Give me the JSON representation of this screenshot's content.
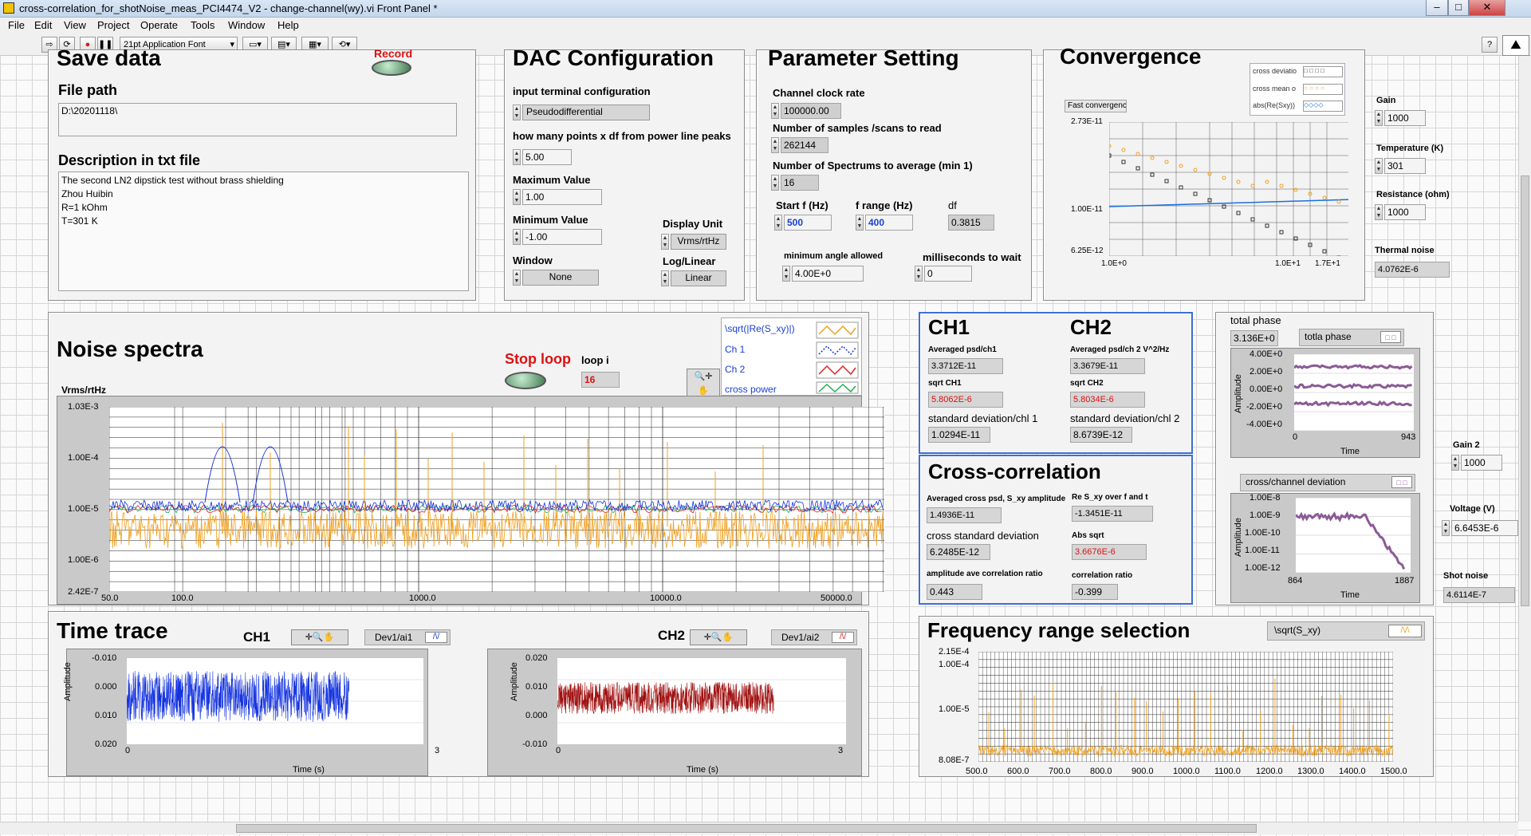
{
  "window": {
    "title": "cross-correlation_for_shotNoise_meas_PCI4474_V2 - change-channel(wy).vi Front Panel *"
  },
  "menu": [
    "File",
    "Edit",
    "View",
    "Project",
    "Operate",
    "Tools",
    "Window",
    "Help"
  ],
  "toolbar": {
    "font": "21pt Application Font"
  },
  "save_data": {
    "title": "Save data",
    "file_path_label": "File path",
    "file_path": "D:\\20201118\\",
    "desc_label": "Description in txt file",
    "desc_lines": [
      "The second LN2 dipstick test without brass shielding",
      "Zhou Huibin",
      "R=1 kOhm",
      "T=301 K"
    ],
    "record_label": "Record"
  },
  "dac": {
    "title": "DAC Configuration",
    "input_term_label": "input terminal configuration",
    "input_term": "Pseudodifferential",
    "points_label": "how many points x df from power line peaks",
    "points": "5.00",
    "max_label": "Maximum Value",
    "max": "1.00",
    "min_label": "Minimum Value",
    "min": "-1.00",
    "window_label": "Window",
    "window": "None",
    "unit_label": "Display Unit",
    "unit": "Vrms/rtHz",
    "loglin_label": "Log/Linear",
    "loglin": "Linear"
  },
  "param": {
    "title": "Parameter Setting",
    "clock_label": "Channel clock rate",
    "clock": "100000.00",
    "samples_label": "Number of samples /scans to read",
    "samples": "262144",
    "spectrums_label": "Number of Spectrums to average (min 1)",
    "spectrums": "16",
    "startf_label": "Start f (Hz)",
    "startf": "500",
    "frange_label": "f range (Hz)",
    "frange": "400",
    "df_label": "df",
    "df": "0.3815",
    "minangle_label": "minimum angle allowed",
    "minangle": "4.00E+0",
    "ms_label": "milliseconds to wait",
    "ms": "0"
  },
  "convergence": {
    "title": "Convergence",
    "fast_label": "Fast convergence",
    "legend": [
      "cross deviatio",
      "cross mean o",
      "abs(Re(Sxy))"
    ],
    "yticks": [
      "2.73E-11",
      "1.00E-11",
      "6.25E-12"
    ],
    "xticks": [
      "1.0E+0",
      "1.0E+1",
      "1.7E+1"
    ]
  },
  "right_params": {
    "gain_label": "Gain",
    "gain": "1000",
    "temp_label": "Temperature (K)",
    "temp": "301",
    "res_label": "Resistance (ohm)",
    "res": "1000",
    "thermal_label": "Thermal noise",
    "thermal": "4.0762E-6",
    "gain2_label": "Gain 2",
    "gain2": "1000",
    "voltage_label": "Voltage (V)",
    "voltage": "6.6453E-6",
    "shot_label": "Shot noise",
    "shot": "4.6114E-7"
  },
  "noise": {
    "title": "Noise spectra",
    "stop_label": "Stop loop",
    "loop_label": "loop i",
    "loop": "16",
    "ylabel": "Vrms/rtHz",
    "legend": [
      "\\sqrt(|Re(S_xy)|)",
      "Ch 1",
      "Ch 2",
      "cross power"
    ],
    "yticks": [
      "1.03E-3",
      "1.00E-4",
      "1.00E-5",
      "1.00E-6",
      "2.42E-7"
    ],
    "xticks": [
      "50.0",
      "100.0",
      "1000.0",
      "10000.0",
      "50000.0"
    ]
  },
  "ch1": {
    "title": "CH1",
    "avg_label": "Averaged psd/ch1",
    "avg": "3.3712E-11",
    "sqrt_label": "sqrt CH1",
    "sqrt": "5.8062E-6",
    "std_label": "standard deviation/chl 1",
    "std": "1.0294E-11"
  },
  "ch2": {
    "title": "CH2",
    "avg_label": "Averaged psd/ch 2 V^2/Hz",
    "avg": "3.3679E-11",
    "sqrt_label": "sqrt CH2",
    "sqrt": "5.8034E-6",
    "std_label": "standard deviation/chl 2",
    "std": "8.6739E-12"
  },
  "xcorr": {
    "title": "Cross-correlation",
    "avg_label": "Averaged cross psd, S_xy amplitude",
    "avg": "1.4936E-11",
    "re_label": "Re S_xy over f and t",
    "re": "-1.3451E-11",
    "std_label": "cross standard deviation",
    "std": "6.2485E-12",
    "abs_label": "Abs sqrt",
    "abs": "3.6676E-6",
    "amp_ratio_label": "amplitude ave correlation ratio",
    "amp_ratio": "0.443",
    "corr_label": "correlation ratio",
    "corr": "-0.399"
  },
  "phase": {
    "total_label": "total phase",
    "total": "3.136E+0",
    "legend": "totla phase",
    "yticks": [
      "4.00E+0",
      "2.00E+0",
      "0.00E+0",
      "-2.00E+0",
      "-4.00E+0"
    ],
    "xticks": [
      "0",
      "943"
    ],
    "xlabel": "Time",
    "ylabel": "Amplitude"
  },
  "ccd": {
    "legend": "cross/channel deviation",
    "yticks": [
      "1.00E-8",
      "1.00E-9",
      "1.00E-10",
      "1.00E-11",
      "1.00E-12"
    ],
    "xticks": [
      "864",
      "1887"
    ],
    "xlabel": "Time",
    "ylabel": "Amplitude"
  },
  "time": {
    "title": "Time trace",
    "ch1": "CH1",
    "ch2": "CH2",
    "dev1": "Dev1/ai1",
    "dev2": "Dev1/ai2",
    "y1": [
      "-0.010",
      "0.000",
      "0.010",
      "0.020"
    ],
    "y2": [
      "0.020",
      "0.010",
      "0.000",
      "-0.010"
    ],
    "x": [
      "0",
      "3"
    ],
    "xlabel": "Time (s)",
    "ylabel": "Amplitude"
  },
  "freq": {
    "title": "Frequency range selection",
    "legend": "\\sqrt(S_xy)",
    "yticks": [
      "2.15E-4",
      "1.00E-4",
      "1.00E-5",
      "8.08E-7"
    ],
    "xticks": [
      "500.0",
      "600.0",
      "700.0",
      "800.0",
      "900.0",
      "1000.0",
      "1100.0",
      "1200.0",
      "1300.0",
      "1400.0",
      "1500.0"
    ]
  },
  "colors": {
    "blue": "#1433e0",
    "orange": "#f0a020",
    "red": "#e02020",
    "green": "#20b050",
    "purple": "#8c5a96",
    "darkred": "#a01010"
  }
}
